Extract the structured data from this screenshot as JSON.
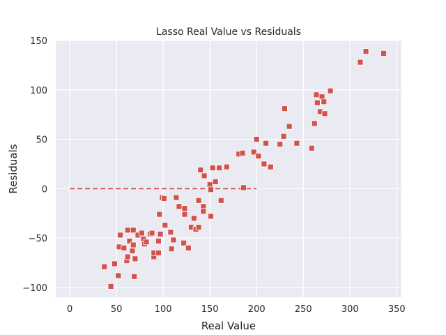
{
  "chart_data": {
    "type": "scatter",
    "title": "Lasso Real Value vs Residuals",
    "xlabel": "Real Value",
    "ylabel": "Residuals",
    "xlim": [
      -15,
      355
    ],
    "ylim": [
      -110,
      150
    ],
    "xticks": [
      0,
      50,
      100,
      150,
      200,
      250,
      300,
      350
    ],
    "yticks": [
      -100,
      -50,
      0,
      50,
      100,
      150
    ],
    "ytick_labels": [
      "−100",
      "−50",
      "0",
      "50",
      "100",
      "150"
    ],
    "grid": true,
    "background_color": "#eaeaf2",
    "point_color": "#d1534d",
    "point_edge_color": "#ffffff",
    "reference_line": {
      "x": [
        0,
        200
      ],
      "y": 0,
      "style": "dashed",
      "color": "#d1534d"
    },
    "points": [
      {
        "x": 37,
        "y": -79
      },
      {
        "x": 44,
        "y": -99
      },
      {
        "x": 48,
        "y": -76
      },
      {
        "x": 52,
        "y": -88
      },
      {
        "x": 53,
        "y": -59
      },
      {
        "x": 54,
        "y": -47
      },
      {
        "x": 58,
        "y": -60
      },
      {
        "x": 61,
        "y": -73
      },
      {
        "x": 62,
        "y": -42
      },
      {
        "x": 62,
        "y": -69
      },
      {
        "x": 64,
        "y": -53
      },
      {
        "x": 67,
        "y": -63
      },
      {
        "x": 68,
        "y": -57
      },
      {
        "x": 68,
        "y": -42
      },
      {
        "x": 69,
        "y": -89
      },
      {
        "x": 70,
        "y": -71
      },
      {
        "x": 73,
        "y": -47
      },
      {
        "x": 77,
        "y": -45
      },
      {
        "x": 79,
        "y": -51
      },
      {
        "x": 80,
        "y": -56
      },
      {
        "x": 82,
        "y": -54
      },
      {
        "x": 86,
        "y": -46
      },
      {
        "x": 88,
        "y": -45
      },
      {
        "x": 90,
        "y": -69
      },
      {
        "x": 90,
        "y": -65
      },
      {
        "x": 95,
        "y": -53
      },
      {
        "x": 95,
        "y": -65
      },
      {
        "x": 96,
        "y": -26
      },
      {
        "x": 97,
        "y": -46
      },
      {
        "x": 99,
        "y": -9
      },
      {
        "x": 101,
        "y": -10
      },
      {
        "x": 102,
        "y": -37
      },
      {
        "x": 108,
        "y": -44
      },
      {
        "x": 109,
        "y": -61
      },
      {
        "x": 111,
        "y": -52
      },
      {
        "x": 114,
        "y": -9
      },
      {
        "x": 117,
        "y": -18
      },
      {
        "x": 122,
        "y": -55
      },
      {
        "x": 123,
        "y": -20
      },
      {
        "x": 123,
        "y": -26
      },
      {
        "x": 127,
        "y": -60
      },
      {
        "x": 130,
        "y": -39
      },
      {
        "x": 133,
        "y": -30
      },
      {
        "x": 135,
        "y": -41
      },
      {
        "x": 138,
        "y": -12
      },
      {
        "x": 138,
        "y": -39
      },
      {
        "x": 140,
        "y": 19
      },
      {
        "x": 143,
        "y": -18
      },
      {
        "x": 143,
        "y": -23
      },
      {
        "x": 144,
        "y": 13
      },
      {
        "x": 150,
        "y": 4
      },
      {
        "x": 151,
        "y": -1
      },
      {
        "x": 151,
        "y": -28
      },
      {
        "x": 153,
        "y": 21
      },
      {
        "x": 156,
        "y": 7
      },
      {
        "x": 160,
        "y": 21
      },
      {
        "x": 162,
        "y": -12
      },
      {
        "x": 168,
        "y": 22
      },
      {
        "x": 181,
        "y": 35
      },
      {
        "x": 185,
        "y": 36
      },
      {
        "x": 186,
        "y": 1
      },
      {
        "x": 197,
        "y": 37
      },
      {
        "x": 200,
        "y": 50
      },
      {
        "x": 202,
        "y": 33
      },
      {
        "x": 208,
        "y": 25
      },
      {
        "x": 210,
        "y": 46
      },
      {
        "x": 215,
        "y": 22
      },
      {
        "x": 225,
        "y": 45
      },
      {
        "x": 229,
        "y": 53
      },
      {
        "x": 230,
        "y": 81
      },
      {
        "x": 235,
        "y": 63
      },
      {
        "x": 243,
        "y": 46
      },
      {
        "x": 259,
        "y": 41
      },
      {
        "x": 262,
        "y": 66
      },
      {
        "x": 264,
        "y": 95
      },
      {
        "x": 265,
        "y": 87
      },
      {
        "x": 268,
        "y": 78
      },
      {
        "x": 270,
        "y": 93
      },
      {
        "x": 272,
        "y": 88
      },
      {
        "x": 273,
        "y": 76
      },
      {
        "x": 279,
        "y": 99
      },
      {
        "x": 311,
        "y": 128
      },
      {
        "x": 317,
        "y": 139
      },
      {
        "x": 336,
        "y": 137
      }
    ]
  }
}
